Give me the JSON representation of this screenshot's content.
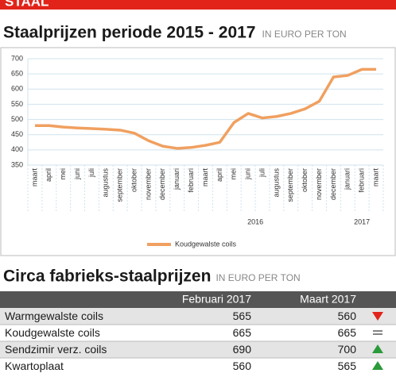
{
  "header": {
    "label": "STAAL"
  },
  "chart_data": {
    "type": "line",
    "title": "Staalprijzen periode 2015 - 2017",
    "subtitle": "IN EURO PER TON",
    "categories": [
      "maart",
      "april",
      "mei",
      "juni",
      "juli",
      "augustus",
      "september",
      "oktober",
      "november",
      "december",
      "januari",
      "februari",
      "maart",
      "april",
      "mei",
      "juni",
      "juli",
      "augustus",
      "september",
      "oktober",
      "november",
      "december",
      "januari",
      "februari",
      "maart"
    ],
    "years": [
      "2016",
      "2017"
    ],
    "series": [
      {
        "name": "Koudgewalste coils",
        "color": "#f0a060",
        "values": [
          480,
          480,
          475,
          472,
          470,
          468,
          465,
          455,
          430,
          412,
          405,
          408,
          415,
          425,
          490,
          520,
          505,
          510,
          520,
          535,
          560,
          640,
          645,
          665,
          665
        ]
      }
    ],
    "ylim": [
      350,
      700
    ],
    "yticks": [
      350,
      400,
      450,
      500,
      550,
      600,
      650,
      700
    ],
    "grid": true
  },
  "table": {
    "title": "Circa fabrieks-staalprijzen",
    "subtitle": "IN EURO PER TON",
    "columns": [
      "Februari 2017",
      "Maart 2017"
    ],
    "rows": [
      [
        "Warmgewalste coils",
        565,
        560
      ],
      [
        "Koudgewalste coils",
        665,
        665
      ],
      [
        "Sendzimir verz. coils",
        690,
        700
      ],
      [
        "Kwartoplaat",
        560,
        565
      ]
    ]
  }
}
